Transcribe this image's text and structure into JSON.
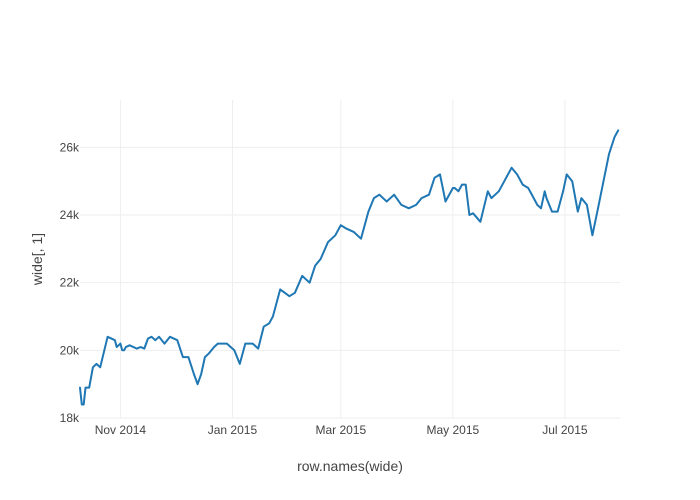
{
  "chart_data": {
    "type": "line",
    "title": "",
    "xlabel": "row.names(wide)",
    "ylabel": "wide[, 1]",
    "xlim": [
      "2014-10-10",
      "2015-07-31"
    ],
    "ylim": [
      18000,
      27400
    ],
    "grid": true,
    "legend": "none",
    "colors": {
      "line": "#1f77b4",
      "grid": "#eeeeee",
      "text": "#444444"
    },
    "x_ticks": [
      {
        "value": "2014-11-01",
        "label": "Nov 2014"
      },
      {
        "value": "2015-01-01",
        "label": "Jan 2015"
      },
      {
        "value": "2015-03-01",
        "label": "Mar 2015"
      },
      {
        "value": "2015-05-01",
        "label": "May 2015"
      },
      {
        "value": "2015-07-01",
        "label": "Jul 2015"
      }
    ],
    "y_ticks": [
      {
        "value": 18000,
        "label": "18k"
      },
      {
        "value": 20000,
        "label": "20k"
      },
      {
        "value": 22000,
        "label": "22k"
      },
      {
        "value": 24000,
        "label": "24k"
      },
      {
        "value": 26000,
        "label": "26k"
      }
    ],
    "series": [
      {
        "x": [
          "2014-10-10",
          "2014-10-11",
          "2014-10-12",
          "2014-10-13",
          "2014-10-15",
          "2014-10-17",
          "2014-10-19",
          "2014-10-21",
          "2014-10-25",
          "2014-10-29",
          "2014-10-30",
          "2014-11-01",
          "2014-11-02",
          "2014-11-03",
          "2014-11-04",
          "2014-11-06",
          "2014-11-10",
          "2014-11-12",
          "2014-11-14",
          "2014-11-16",
          "2014-11-18",
          "2014-11-20",
          "2014-11-22",
          "2014-11-25",
          "2014-11-28",
          "2014-12-02",
          "2014-12-05",
          "2014-12-08",
          "2014-12-11",
          "2014-12-13",
          "2014-12-15",
          "2014-12-17",
          "2014-12-19",
          "2014-12-22",
          "2014-12-24",
          "2014-12-26",
          "2014-12-29",
          "2015-01-02",
          "2015-01-05",
          "2015-01-08",
          "2015-01-12",
          "2015-01-15",
          "2015-01-18",
          "2015-01-21",
          "2015-01-23",
          "2015-01-27",
          "2015-02-01",
          "2015-02-04",
          "2015-02-08",
          "2015-02-12",
          "2015-02-15",
          "2015-02-18",
          "2015-02-22",
          "2015-02-26",
          "2015-03-01",
          "2015-03-04",
          "2015-03-08",
          "2015-03-12",
          "2015-03-16",
          "2015-03-19",
          "2015-03-22",
          "2015-03-26",
          "2015-03-30",
          "2015-04-03",
          "2015-04-07",
          "2015-04-11",
          "2015-04-14",
          "2015-04-18",
          "2015-04-21",
          "2015-04-24",
          "2015-04-27",
          "2015-05-01",
          "2015-05-02",
          "2015-05-04",
          "2015-05-06",
          "2015-05-08",
          "2015-05-10",
          "2015-05-12",
          "2015-05-16",
          "2015-05-20",
          "2015-05-22",
          "2015-05-26",
          "2015-05-29",
          "2015-06-02",
          "2015-06-05",
          "2015-06-08",
          "2015-06-11",
          "2015-06-14",
          "2015-06-16",
          "2015-06-18",
          "2015-06-20",
          "2015-06-21",
          "2015-06-24",
          "2015-06-27",
          "2015-06-30",
          "2015-07-02",
          "2015-07-05",
          "2015-07-08",
          "2015-07-10",
          "2015-07-13",
          "2015-07-16",
          "2015-07-19",
          "2015-07-22",
          "2015-07-25",
          "2015-07-28",
          "2015-07-30"
        ],
        "y": [
          18900,
          18400,
          18400,
          18900,
          18900,
          19500,
          19600,
          19500,
          20400,
          20300,
          20100,
          20200,
          20000,
          20000,
          20100,
          20150,
          20050,
          20100,
          20050,
          20350,
          20400,
          20300,
          20400,
          20200,
          20400,
          20300,
          19800,
          19800,
          19300,
          19000,
          19300,
          19800,
          19900,
          20100,
          20200,
          20200,
          20200,
          20000,
          19600,
          20200,
          20200,
          20050,
          20700,
          20800,
          21000,
          21800,
          21600,
          21700,
          22200,
          22000,
          22500,
          22700,
          23200,
          23400,
          23700,
          23600,
          23500,
          23300,
          24100,
          24500,
          24600,
          24400,
          24600,
          24300,
          24200,
          24300,
          24500,
          24600,
          25100,
          25200,
          24400,
          24800,
          24800,
          24700,
          24900,
          24900,
          24000,
          24050,
          23800,
          24700,
          24500,
          24700,
          25000,
          25400,
          25200,
          24900,
          24800,
          24500,
          24300,
          24200,
          24700,
          24500,
          24100,
          24100,
          24700,
          25200,
          25000,
          24100,
          24500,
          24300,
          23400,
          24200,
          25000,
          25800,
          26300,
          26500
        ]
      }
    ]
  }
}
